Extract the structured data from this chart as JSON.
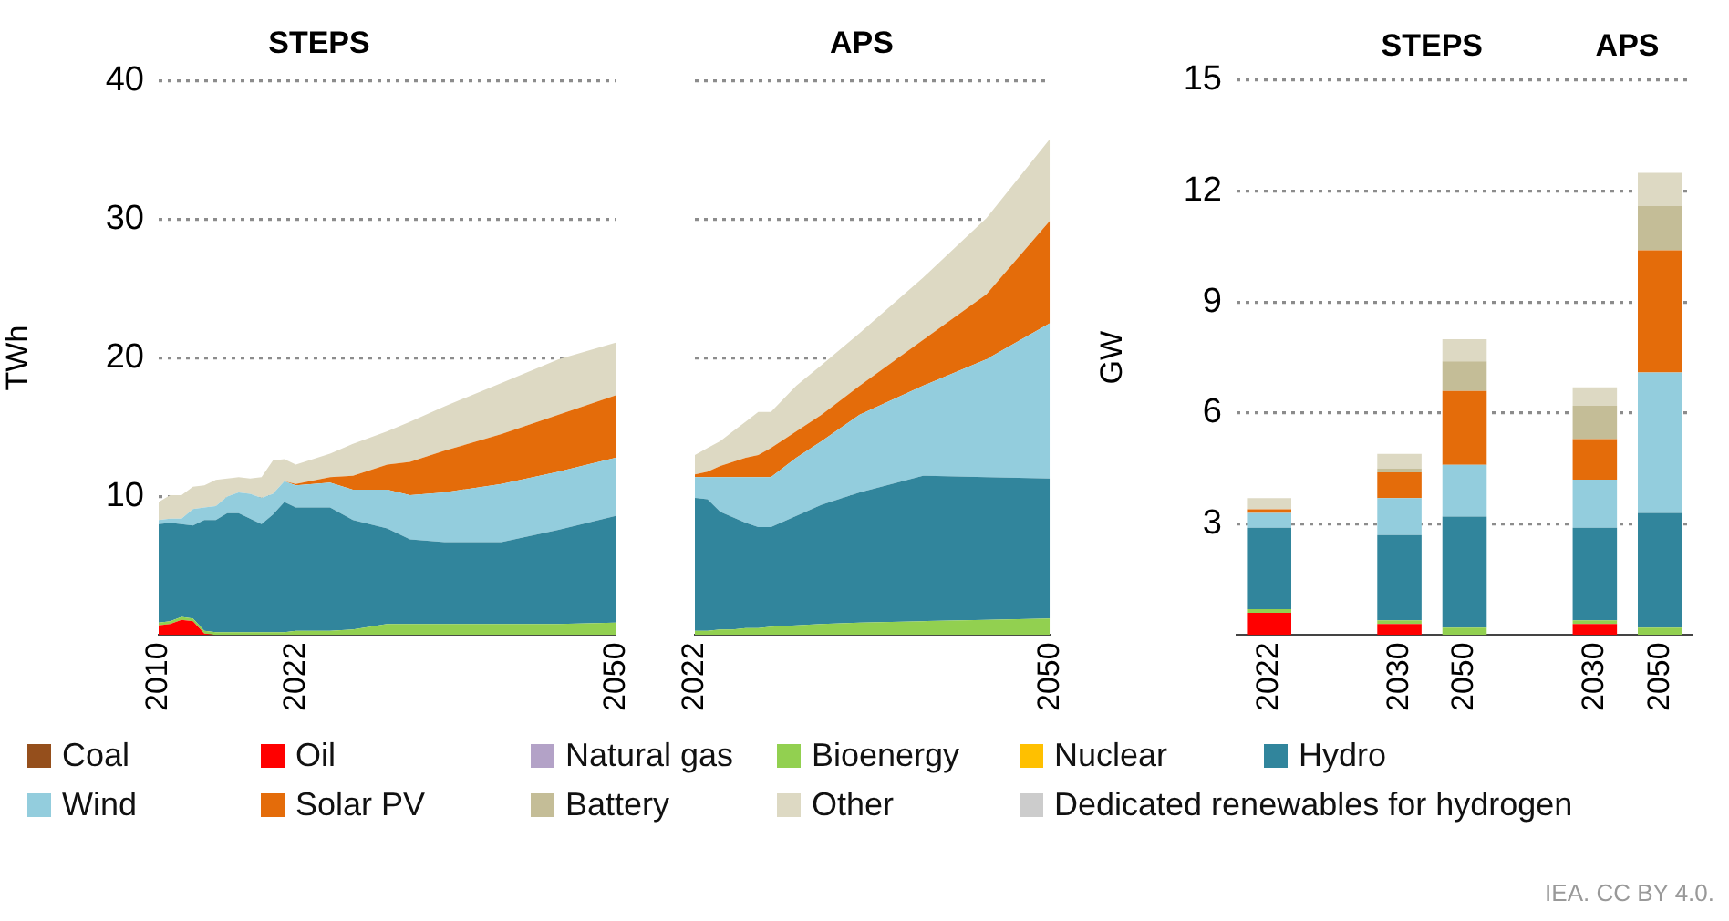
{
  "chart_data": [
    {
      "type": "area",
      "stacked": true,
      "title": "STEPS",
      "ylabel": "TWh",
      "x": [
        2010,
        2011,
        2012,
        2013,
        2014,
        2015,
        2016,
        2017,
        2018,
        2019,
        2020,
        2021,
        2022,
        2025,
        2027,
        2030,
        2032,
        2035,
        2040,
        2045,
        2050
      ],
      "xlim": [
        2010,
        2050
      ],
      "xticks": [
        2010,
        2022,
        2050
      ],
      "ylim": [
        0,
        40
      ],
      "yticks": [
        10,
        20,
        30,
        40
      ],
      "grid": "y",
      "legend": "bottom",
      "annotations": [
        "IEA. CC BY 4.0."
      ],
      "series": [
        {
          "name": "Coal",
          "color": "#954f1c",
          "values": [
            null,
            null,
            null,
            null,
            null,
            null,
            null,
            null,
            null,
            null,
            null,
            null,
            null,
            null,
            null,
            null,
            null,
            null,
            null,
            null,
            null
          ]
        },
        {
          "name": "Oil",
          "color": "#ff0000",
          "values": [
            0.7,
            0.8,
            1.1,
            1.0,
            0.1,
            0,
            0,
            0,
            0,
            0,
            0,
            0,
            0,
            0,
            0,
            0,
            0,
            0,
            0,
            0,
            0
          ]
        },
        {
          "name": "Natural gas",
          "color": "#b3a2c7",
          "values": [
            null,
            null,
            null,
            null,
            null,
            null,
            null,
            null,
            null,
            null,
            null,
            null,
            null,
            null,
            null,
            null,
            null,
            null,
            null,
            null,
            null
          ]
        },
        {
          "name": "Bioenergy",
          "color": "#92d050",
          "values": [
            0.2,
            0.2,
            0.2,
            0.2,
            0.2,
            0.2,
            0.2,
            0.2,
            0.2,
            0.2,
            0.2,
            0.2,
            0.3,
            0.3,
            0.4,
            0.8,
            0.8,
            0.8,
            0.8,
            0.8,
            0.9
          ]
        },
        {
          "name": "Nuclear",
          "color": "#ffc000",
          "values": [
            null,
            null,
            null,
            null,
            null,
            null,
            null,
            null,
            null,
            null,
            null,
            null,
            null,
            null,
            null,
            null,
            null,
            null,
            null,
            null,
            null
          ]
        },
        {
          "name": "Hydro",
          "color": "#31859c",
          "values": [
            7.1,
            7.1,
            6.7,
            6.7,
            8.0,
            8.1,
            8.6,
            8.6,
            8.2,
            7.8,
            8.5,
            9.4,
            8.9,
            8.9,
            7.9,
            6.9,
            6.1,
            5.9,
            5.9,
            6.8,
            7.7
          ]
        },
        {
          "name": "Wind",
          "color": "#93cddd",
          "values": [
            0.3,
            0.3,
            0.4,
            1.2,
            0.9,
            1.0,
            1.2,
            1.5,
            1.8,
            1.9,
            1.5,
            1.5,
            1.6,
            1.8,
            2.2,
            2.8,
            3.2,
            3.6,
            4.2,
            4.2,
            4.2
          ]
        },
        {
          "name": "Solar PV",
          "color": "#e46c0a",
          "values": [
            0,
            0,
            0,
            0,
            0,
            0,
            0,
            0,
            0,
            0,
            0,
            0,
            0.1,
            0.4,
            1.0,
            1.8,
            2.4,
            3.0,
            3.6,
            4.1,
            4.5
          ]
        },
        {
          "name": "Battery",
          "color": "#c4bd97",
          "values": [
            null,
            null,
            null,
            null,
            null,
            null,
            null,
            null,
            null,
            null,
            null,
            null,
            null,
            null,
            null,
            null,
            null,
            null,
            null,
            null,
            null
          ]
        },
        {
          "name": "Other",
          "color": "#ddd9c3",
          "values": [
            1.3,
            1.7,
            1.7,
            1.6,
            1.6,
            1.9,
            1.3,
            1.1,
            1.1,
            1.5,
            2.4,
            1.6,
            1.4,
            1.7,
            2.3,
            2.4,
            2.9,
            3.2,
            3.7,
            4.0,
            3.8
          ]
        },
        {
          "name": "Dedicated renewables for hydrogen",
          "color": "#cccccc",
          "values": [
            null,
            null,
            null,
            null,
            null,
            null,
            null,
            null,
            null,
            null,
            null,
            null,
            null,
            null,
            null,
            null,
            null,
            null,
            null,
            null,
            null
          ]
        }
      ]
    },
    {
      "type": "area",
      "stacked": true,
      "title": "APS",
      "x": [
        2022,
        2023,
        2024,
        2025,
        2026,
        2027,
        2028,
        2030,
        2032,
        2035,
        2040,
        2045,
        2050
      ],
      "xlim": [
        2022,
        2050
      ],
      "xticks": [
        2022,
        2050
      ],
      "ylim": [
        0,
        40
      ],
      "yticks": [
        10,
        20,
        30,
        40
      ],
      "grid": "y",
      "tick_labels": "x",
      "series": [
        {
          "color": "#92d050",
          "values": [
            0.3,
            0.3,
            0.4,
            0.4,
            0.5,
            0.5,
            0.6,
            0.7,
            0.8,
            0.9,
            1.0,
            1.1,
            1.2
          ]
        },
        {
          "color": "#31859c",
          "values": [
            9.6,
            9.5,
            8.5,
            8.1,
            7.6,
            7.3,
            7.2,
            7.9,
            8.6,
            9.4,
            10.5,
            10.3,
            10.1
          ]
        },
        {
          "color": "#93cddd",
          "values": [
            1.5,
            1.6,
            2.5,
            2.9,
            3.3,
            3.6,
            3.6,
            4.2,
            4.6,
            5.6,
            6.5,
            8.5,
            11.2
          ]
        },
        {
          "color": "#e46c0a",
          "values": [
            0.2,
            0.4,
            0.8,
            1.1,
            1.4,
            1.6,
            2.1,
            1.9,
            1.9,
            2.1,
            3.3,
            4.7,
            7.4
          ]
        },
        {
          "color": "#ddd9c3",
          "values": [
            1.4,
            1.7,
            1.8,
            2.2,
            2.6,
            3.1,
            2.6,
            3.3,
            3.6,
            3.8,
            4.5,
            5.5,
            5.9
          ]
        }
      ]
    },
    {
      "type": "bar",
      "stacked": true,
      "ylabel": "GW",
      "categories": [
        "2022",
        null,
        "2030",
        "2050",
        null,
        "2030",
        "2050"
      ],
      "ylim": [
        0,
        15
      ],
      "yticks": [
        3,
        6,
        9,
        12,
        15
      ],
      "grid": "y",
      "annotations": [
        "STEPS",
        "APS"
      ],
      "series": [
        {
          "color": "#ff0000",
          "values": [
            0.6,
            null,
            0.3,
            0,
            null,
            0.3,
            0
          ]
        },
        {
          "color": "#92d050",
          "values": [
            0.1,
            null,
            0.1,
            0.2,
            null,
            0.1,
            0.2
          ]
        },
        {
          "color": "#31859c",
          "values": [
            2.2,
            null,
            2.3,
            3.0,
            null,
            2.5,
            3.1
          ]
        },
        {
          "color": "#93cddd",
          "values": [
            0.4,
            null,
            1.0,
            1.4,
            null,
            1.3,
            3.8
          ]
        },
        {
          "color": "#e46c0a",
          "values": [
            0.1,
            null,
            0.7,
            2.0,
            null,
            1.1,
            3.3
          ]
        },
        {
          "color": "#c4bd97",
          "values": [
            0,
            null,
            0.1,
            0.8,
            null,
            0.9,
            1.2
          ]
        },
        {
          "color": "#ddd9c3",
          "values": [
            0.3,
            null,
            0.4,
            0.6,
            null,
            0.5,
            0.9
          ]
        }
      ]
    }
  ]
}
